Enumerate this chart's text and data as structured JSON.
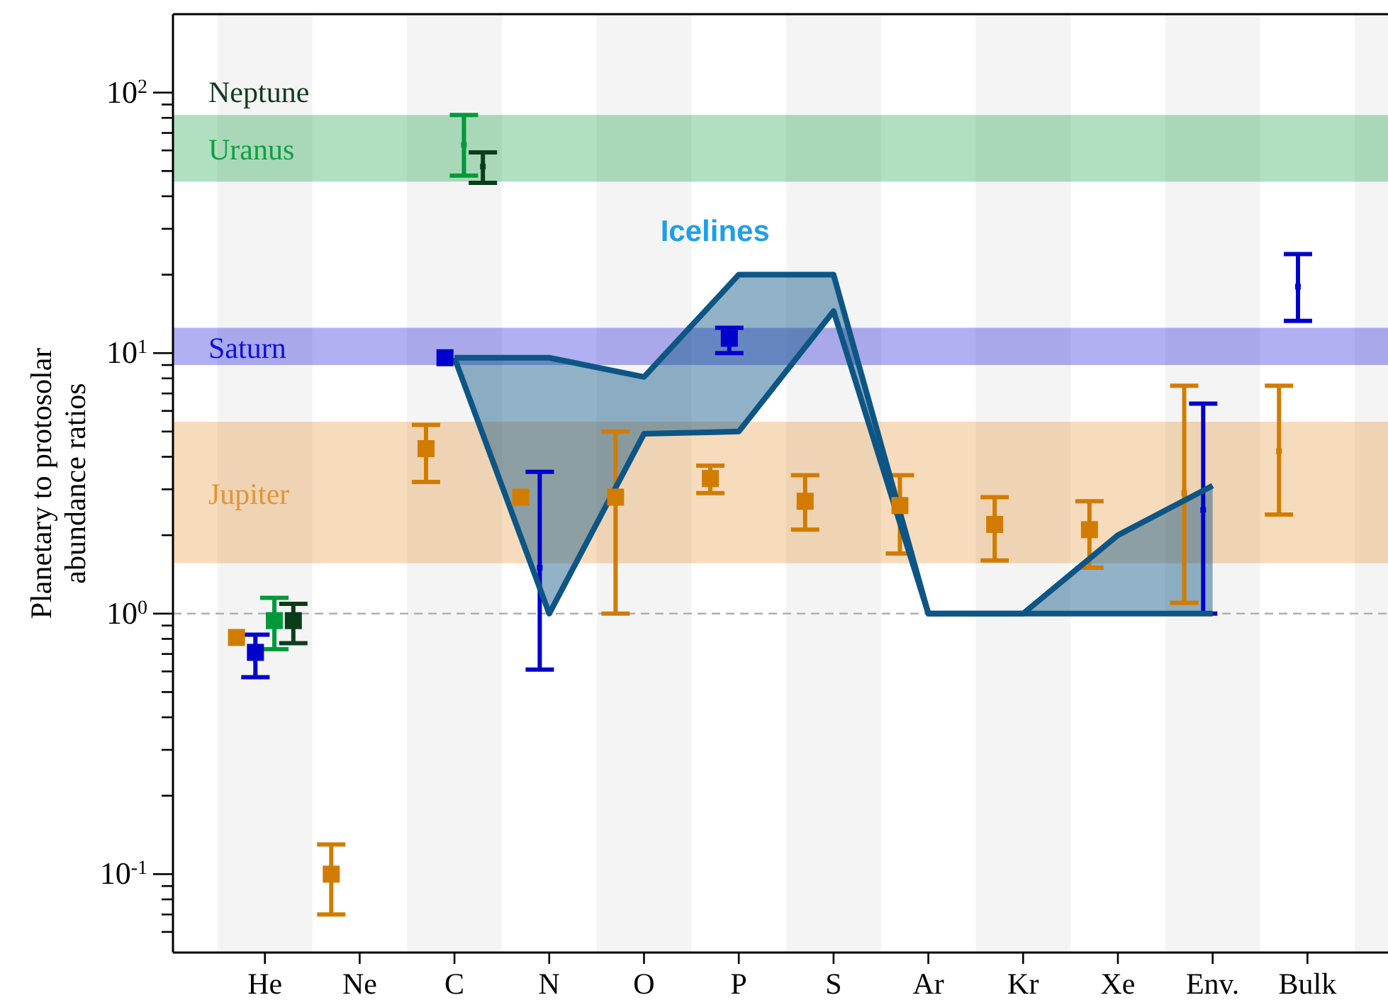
{
  "chart_data": {
    "type": "scatter",
    "ylabel": "Planetary to protosolar abundance ratios",
    "categories": [
      "He",
      "Ne",
      "C",
      "N",
      "O",
      "P",
      "S",
      "Ar",
      "Kr",
      "Xe",
      "Env.",
      "Bulk"
    ],
    "log": "y",
    "ylim": [
      0.05,
      200
    ],
    "yticks": [
      {
        "value": 0.06,
        "label": null
      },
      {
        "value": 0.07,
        "label": null
      },
      {
        "value": 0.08,
        "label": null
      },
      {
        "value": 0.09,
        "label": null
      },
      {
        "value": 0.1,
        "label": "10$^{-1}$"
      },
      {
        "value": 0.2,
        "label": null
      },
      {
        "value": 0.3,
        "label": null
      },
      {
        "value": 0.4,
        "label": null
      },
      {
        "value": 0.5,
        "label": null
      },
      {
        "value": 0.6,
        "label": null
      },
      {
        "value": 0.7,
        "label": null
      },
      {
        "value": 0.8,
        "label": null
      },
      {
        "value": 0.9,
        "label": null
      },
      {
        "value": 1,
        "label": "10$^{0}$"
      },
      {
        "value": 2,
        "label": null
      },
      {
        "value": 3,
        "label": null
      },
      {
        "value": 4,
        "label": null
      },
      {
        "value": 5,
        "label": null
      },
      {
        "value": 6,
        "label": null
      },
      {
        "value": 7,
        "label": null
      },
      {
        "value": 8,
        "label": null
      },
      {
        "value": 9,
        "label": null
      },
      {
        "value": 10,
        "label": "10$^{1}$"
      },
      {
        "value": 20,
        "label": null
      },
      {
        "value": 30,
        "label": null
      },
      {
        "value": 40,
        "label": null
      },
      {
        "value": 50,
        "label": null
      },
      {
        "value": 60,
        "label": null
      },
      {
        "value": 70,
        "label": null
      },
      {
        "value": 80,
        "label": null
      },
      {
        "value": 90,
        "label": null
      },
      {
        "value": 100,
        "label": "10$^{2}$"
      }
    ],
    "series": [
      {
        "color": "#d17c00",
        "marker": "square",
        "values": [
          0.81,
          0.1,
          4.3,
          2.8,
          2.8,
          3.3,
          2.7,
          2.6,
          2.2,
          2.1,
          null,
          null
        ],
        "errors": [
          null,
          [
            0.07,
            0.13
          ],
          [
            3.2,
            5.3
          ],
          null,
          [
            1.0,
            5.0
          ],
          [
            2.9,
            3.7
          ],
          [
            2.1,
            3.4
          ],
          [
            1.7,
            3.4
          ],
          [
            1.6,
            2.8
          ],
          [
            1.5,
            2.7
          ],
          null,
          null
        ]
      },
      {
        "color": "#0000cc",
        "marker": "square",
        "values": [
          0.71,
          null,
          9.6,
          null,
          null,
          11.4,
          null,
          null,
          null,
          null,
          null,
          null
        ],
        "errors": [
          [
            0.57,
            0.83
          ],
          null,
          null,
          null,
          null,
          [
            10,
            12.5
          ],
          null,
          null,
          null,
          null,
          null,
          null
        ]
      },
      {
        "color": "#00993a",
        "marker": "square",
        "values": [
          0.94,
          null,
          null,
          null,
          null,
          null,
          null,
          null,
          null,
          null,
          null,
          null
        ],
        "errors": [
          [
            0.73,
            1.15
          ],
          null,
          null,
          null,
          null,
          null,
          null,
          null,
          null,
          null,
          null,
          null
        ]
      },
      {
        "color": "#0b3d1b",
        "marker": "square",
        "values": [
          0.94,
          null,
          null,
          null,
          null,
          null,
          null,
          null,
          null,
          null,
          null,
          null
        ],
        "errors": [
          [
            0.77,
            1.09
          ],
          null,
          null,
          null,
          null,
          null,
          null,
          null,
          null,
          null,
          null,
          null
        ]
      },
      {
        "color": "#d17c00",
        "values": [
          null,
          null,
          null,
          null,
          null,
          null,
          null,
          null,
          null,
          null,
          2.9,
          4.2
        ],
        "errors": [
          null,
          null,
          null,
          null,
          null,
          null,
          null,
          null,
          null,
          null,
          [
            1.1,
            7.5
          ],
          [
            2.4,
            7.5
          ]
        ]
      },
      {
        "color": "#0000cc",
        "values": [
          null,
          null,
          null,
          1.5,
          null,
          null,
          null,
          null,
          null,
          null,
          2.5,
          18
        ],
        "errors": [
          null,
          null,
          null,
          [
            0.61,
            3.5
          ],
          null,
          null,
          null,
          null,
          null,
          null,
          [
            1.0,
            6.4
          ],
          [
            13.3,
            24
          ]
        ]
      },
      {
        "color": "#00993a",
        "values": [
          null,
          null,
          63,
          null,
          null,
          null,
          null,
          null,
          null,
          null,
          null,
          null
        ],
        "errors": [
          null,
          null,
          [
            48,
            82
          ],
          null,
          null,
          null,
          null,
          null,
          null,
          null,
          null,
          null
        ]
      },
      {
        "color": "#0b3d1b",
        "values": [
          null,
          null,
          52,
          null,
          null,
          null,
          null,
          null,
          null,
          null,
          null,
          null
        ],
        "errors": [
          null,
          null,
          [
            45,
            59
          ],
          null,
          null,
          null,
          null,
          null,
          null,
          null,
          null,
          null
        ]
      },
      {
        "type": "line",
        "marker": "none",
        "name": "Icelines",
        "color": "#0d5584",
        "values": [
          null,
          null,
          9.6,
          9.6,
          8.1,
          20,
          20,
          1.0,
          1.0,
          2.0,
          3.1,
          null
        ],
        "upper": [
          null,
          null,
          9.6,
          9.6,
          8.1,
          20,
          20,
          1.0,
          1.0,
          2.0,
          3.1,
          null
        ],
        "lower": [
          null,
          null,
          9.6,
          1.0,
          4.9,
          5.0,
          14.5,
          1.0,
          1.0,
          1.0,
          1.0,
          null
        ]
      },
      {
        "type": "line",
        "marker": "none",
        "color": "#0d5584",
        "values": [
          null,
          null,
          9.6,
          1.0,
          4.9,
          5.0,
          14.5,
          1.0,
          1.0,
          1.0,
          1.0,
          null
        ]
      }
    ],
    "bands": [
      {
        "axis": "y",
        "from": 9.0,
        "to": 12.5,
        "label": "Saturn",
        "color": "#1010d8"
      },
      {
        "axis": "y",
        "from": 1.56,
        "to": 5.45,
        "label": "Jupiter",
        "color": "#e39434"
      },
      {
        "axis": "y",
        "from": 45.5,
        "to": 82,
        "label": "Uranus",
        "color": "#10a040"
      }
    ],
    "annotations": [
      "Neptune"
    ],
    "ref_lines": [
      {
        "axis": "y",
        "value": 1,
        "color": "#b0b0b0",
        "line_style": "dashed"
      }
    ]
  }
}
